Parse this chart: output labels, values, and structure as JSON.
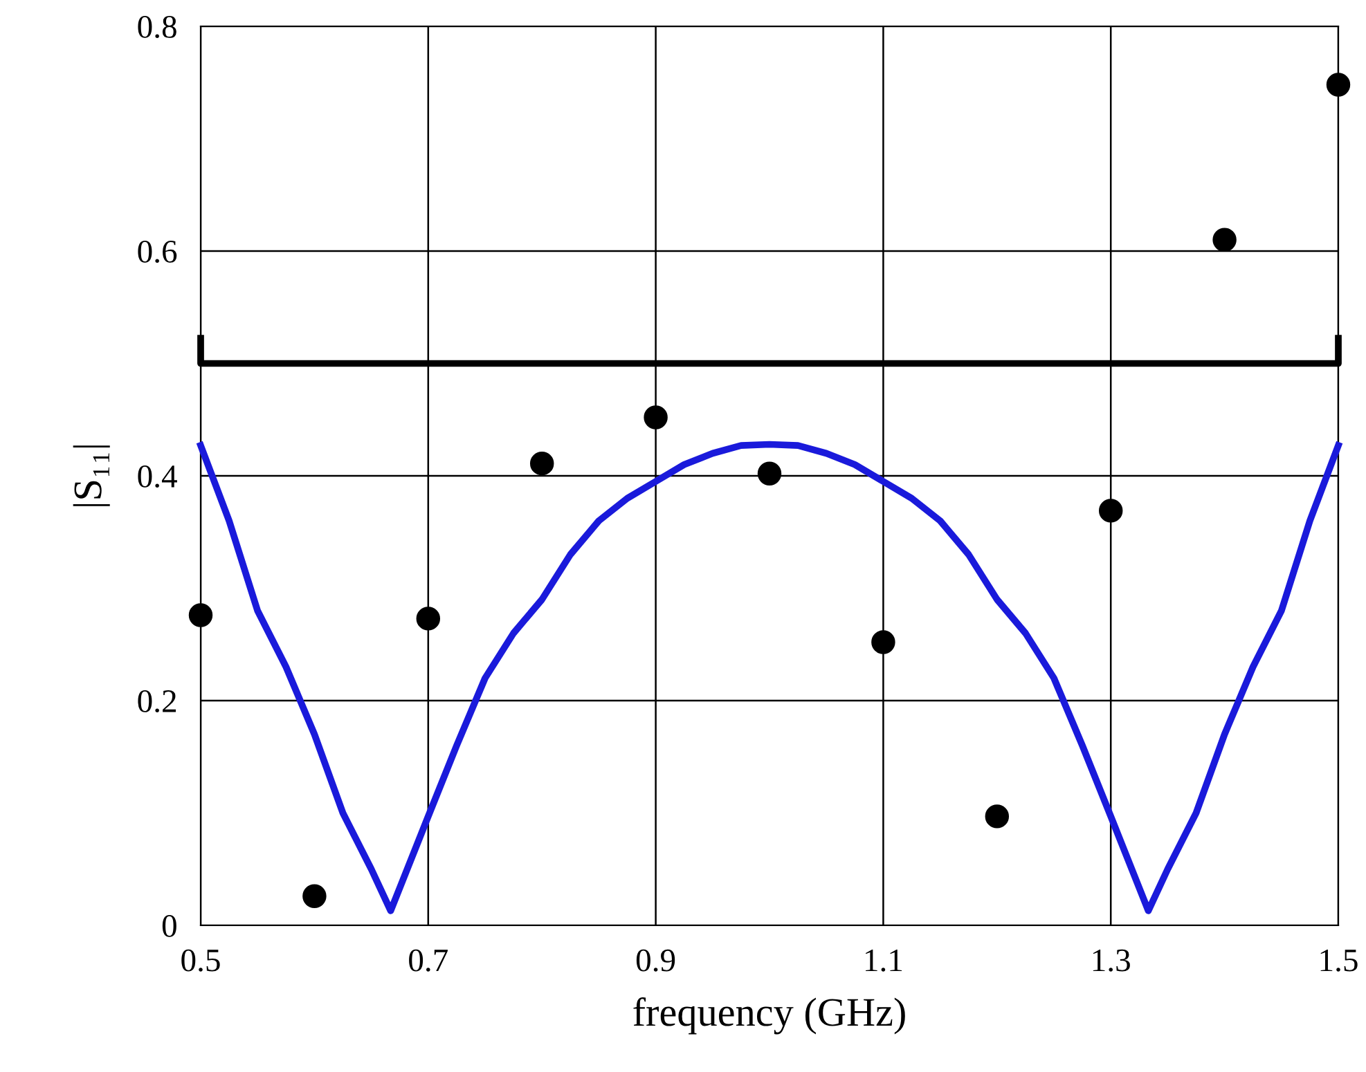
{
  "chart_data": {
    "type": "scatter",
    "xlabel": "frequency (GHz)",
    "ylabel": "|S₁₁|",
    "xlim": [
      0.5,
      1.5
    ],
    "xticks": [
      0.5,
      0.7,
      0.9,
      1.1,
      1.3,
      1.5
    ],
    "ylim": [
      0,
      0.8
    ],
    "yticks": [
      0,
      0.2,
      0.4,
      0.6,
      0.8
    ],
    "grid": true,
    "series": [
      {
        "color": "#000000",
        "marker": "circle",
        "x": [
          0.5,
          0.6,
          0.7,
          0.8,
          0.9,
          1.0,
          1.1,
          1.2,
          1.3,
          1.4,
          1.5
        ],
        "values": [
          0.276,
          0.026,
          0.273,
          0.411,
          0.452,
          0.402,
          0.252,
          0.097,
          0.369,
          0.61,
          0.748
        ]
      },
      {
        "type": "line",
        "color": "#1a1adb",
        "x": [
          0.5,
          0.525,
          0.55,
          0.575,
          0.6,
          0.625,
          0.65,
          0.667,
          0.7,
          0.725,
          0.75,
          0.775,
          0.8,
          0.825,
          0.85,
          0.875,
          0.9,
          0.925,
          0.95,
          0.975,
          1.0,
          1.025,
          1.05,
          1.075,
          1.1,
          1.125,
          1.15,
          1.175,
          1.2,
          1.225,
          1.25,
          1.275,
          1.3,
          1.333,
          1.35,
          1.375,
          1.4,
          1.425,
          1.45,
          1.475,
          1.5
        ],
        "values": [
          0.427,
          0.36,
          0.28,
          0.23,
          0.17,
          0.1,
          0.05,
          0.013,
          0.097,
          0.16,
          0.22,
          0.26,
          0.29,
          0.33,
          0.36,
          0.38,
          0.395,
          0.41,
          0.42,
          0.427,
          0.428,
          0.427,
          0.42,
          0.41,
          0.395,
          0.38,
          0.36,
          0.33,
          0.29,
          0.26,
          0.22,
          0.16,
          0.097,
          0.013,
          0.05,
          0.1,
          0.17,
          0.23,
          0.28,
          0.36,
          0.427
        ]
      }
    ],
    "ref_lines": [
      {
        "axis": "y",
        "value": 0.5,
        "color": "#000000"
      }
    ]
  }
}
